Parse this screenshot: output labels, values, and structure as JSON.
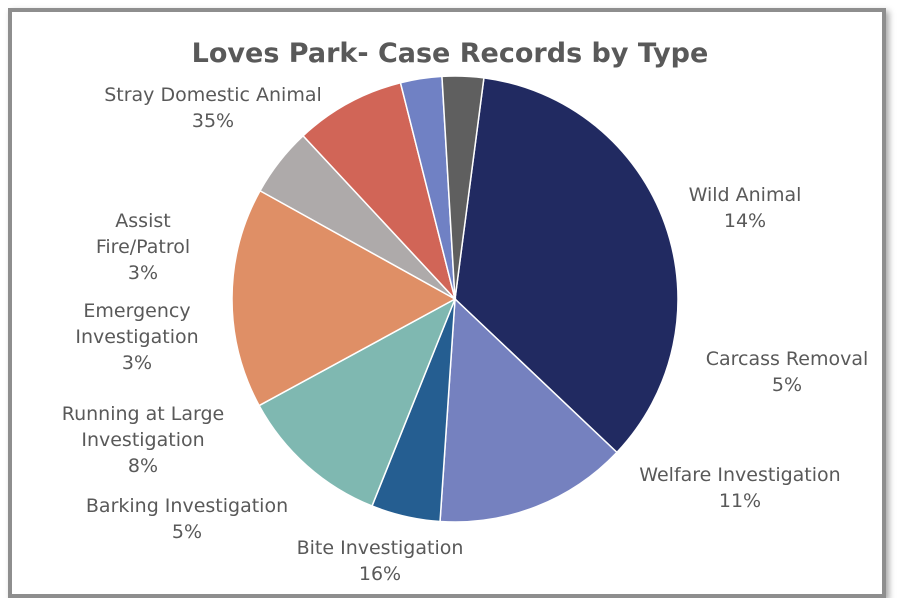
{
  "chart_data": {
    "type": "pie",
    "title": "Loves Park- Case Records by Type",
    "slices": [
      {
        "category": "Stray Domestic Animal",
        "label_lines": [
          "Stray Domestic Animal"
        ],
        "percent_label": "35%",
        "value": 35,
        "color": "#212a61"
      },
      {
        "category": "Wild Animal",
        "label_lines": [
          "Wild Animal"
        ],
        "percent_label": "14%",
        "value": 14,
        "color": "#7581bf"
      },
      {
        "category": "Carcass Removal",
        "label_lines": [
          "Carcass Removal"
        ],
        "percent_label": "5%",
        "value": 5,
        "color": "#255e91"
      },
      {
        "category": "Welfare Investigation",
        "label_lines": [
          "Welfare Investigation"
        ],
        "percent_label": "11%",
        "value": 11,
        "color": "#7fb8b1"
      },
      {
        "category": "Bite Investigation",
        "label_lines": [
          "Bite Investigation"
        ],
        "percent_label": "16%",
        "value": 16,
        "color": "#df8f66"
      },
      {
        "category": "Barking Investigation",
        "label_lines": [
          "Barking Investigation"
        ],
        "percent_label": "5%",
        "value": 5,
        "color": "#aeaaaa"
      },
      {
        "category": "Running at Large Investigation",
        "label_lines": [
          "Running at Large",
          "Investigation"
        ],
        "percent_label": "8%",
        "value": 8,
        "color": "#d16557"
      },
      {
        "category": "Emergency Investigation",
        "label_lines": [
          "Emergency",
          "Investigation"
        ],
        "percent_label": "3%",
        "value": 3,
        "color": "#7081c4"
      },
      {
        "category": "Assist Fire/Patrol",
        "label_lines": [
          "Assist",
          "Fire/Patrol"
        ],
        "percent_label": "3%",
        "value": 3,
        "color": "#5f5f5f"
      }
    ]
  }
}
